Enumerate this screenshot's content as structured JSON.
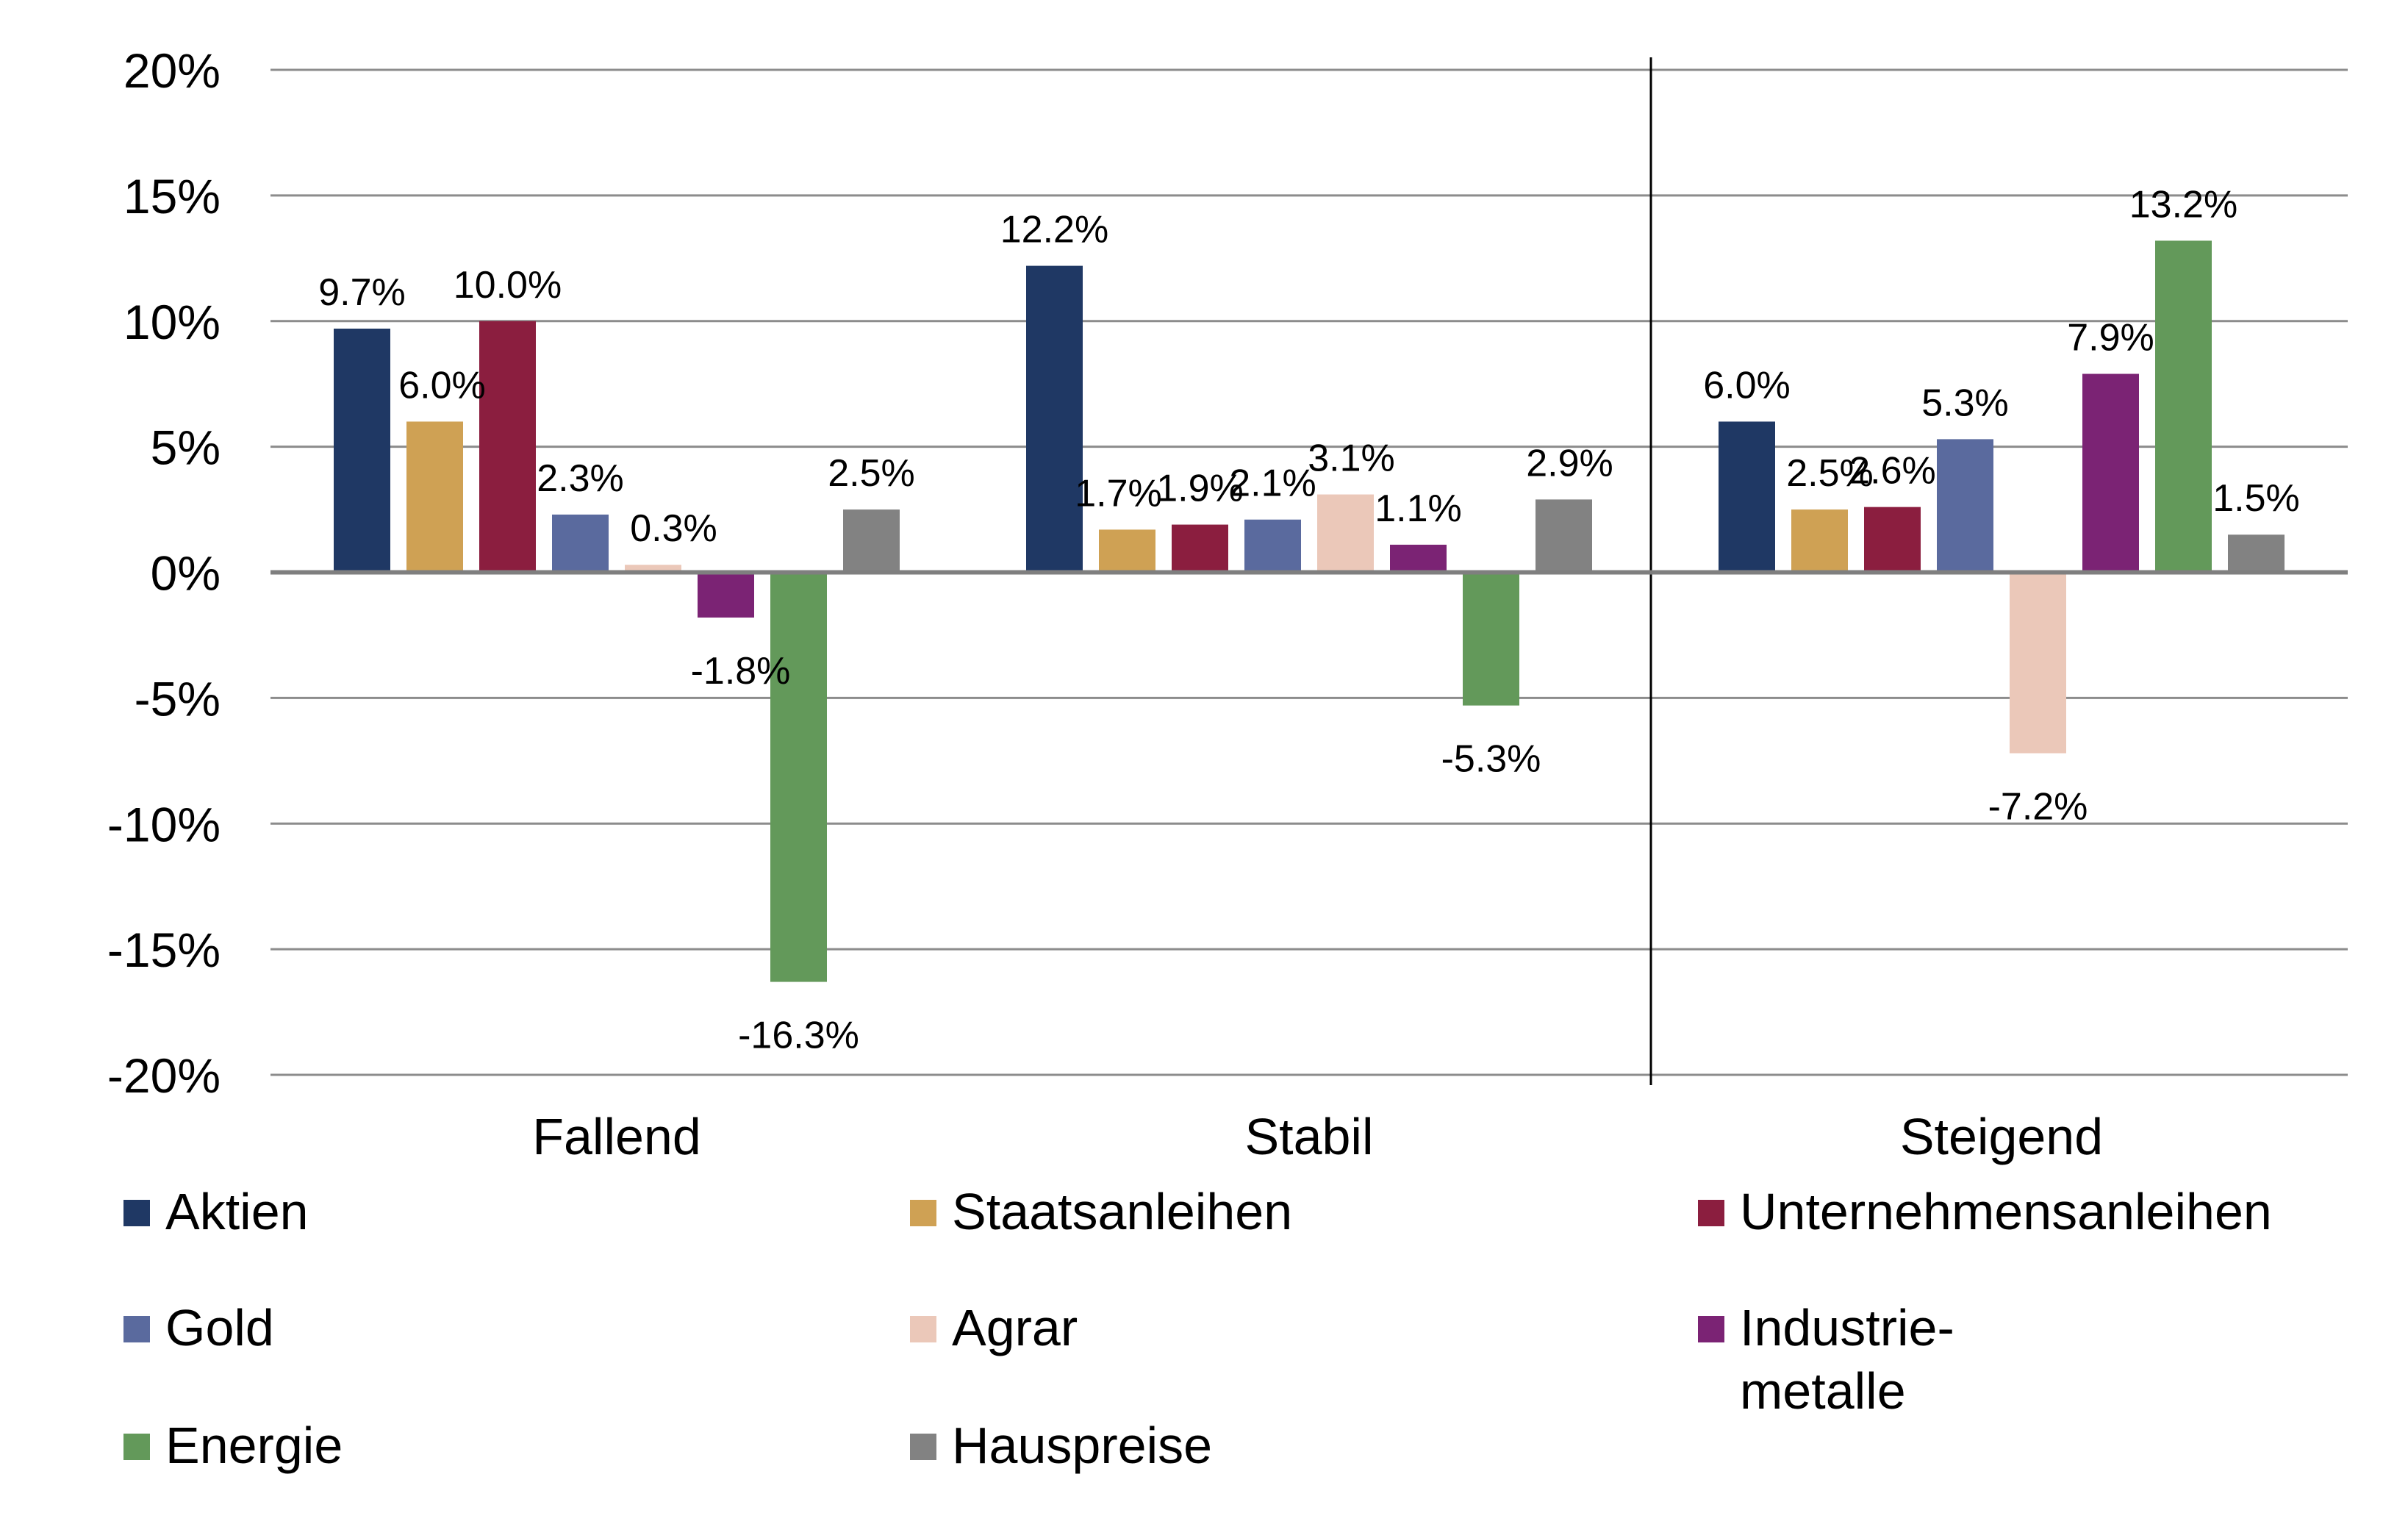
{
  "chart_data": {
    "type": "bar",
    "categories": [
      "Fallend",
      "Stabil",
      "Steigend"
    ],
    "ylim": [
      -20,
      20
    ],
    "yticks": [
      20,
      15,
      10,
      5,
      0,
      -5,
      -10,
      -15,
      -20
    ],
    "ytick_labels": [
      "20%",
      "15%",
      "10%",
      "5%",
      "0%",
      "-5%",
      "-10%",
      "-15%",
      "-20%"
    ],
    "grid": true,
    "legend_position": "bottom",
    "series": [
      {
        "name": "Aktien",
        "color": "#1F3864",
        "values": [
          9.7,
          12.2,
          6.0
        ],
        "labels": [
          "9.7%",
          "12.2%",
          "6.0%"
        ]
      },
      {
        "name": "Staatsanleihen",
        "color": "#CFA154",
        "values": [
          6.0,
          1.7,
          2.5
        ],
        "labels": [
          "6.0%",
          "1.7%",
          "2.5%"
        ]
      },
      {
        "name": "Unternehmensanleihen",
        "color": "#8B1E3F",
        "values": [
          10.0,
          1.9,
          2.6
        ],
        "labels": [
          "10.0%",
          "1.9%",
          "2.6%"
        ]
      },
      {
        "name": "Gold",
        "color": "#5A6A9E",
        "values": [
          2.3,
          2.1,
          5.3
        ],
        "labels": [
          "2.3%",
          "2.1%",
          "5.3%"
        ]
      },
      {
        "name": "Agrar",
        "color": "#EBC8B9",
        "values": [
          0.3,
          3.1,
          -7.2
        ],
        "labels": [
          "0.3%",
          "3.1%",
          "-7.2%"
        ]
      },
      {
        "name": "Industrie-\nmetalle",
        "color": "#7B2374",
        "values": [
          -1.8,
          1.1,
          7.9
        ],
        "labels": [
          "-1.8%",
          "1.1%",
          "7.9%"
        ]
      },
      {
        "name": "Energie",
        "color": "#63995A",
        "values": [
          -16.3,
          -5.3,
          13.2
        ],
        "labels": [
          "-16.3%",
          "-5.3%",
          "13.2%"
        ]
      },
      {
        "name": "Hauspreise",
        "color": "#828282",
        "values": [
          2.5,
          2.9,
          1.5
        ],
        "labels": [
          "2.5%",
          "2.9%",
          "1.5%"
        ]
      }
    ]
  }
}
